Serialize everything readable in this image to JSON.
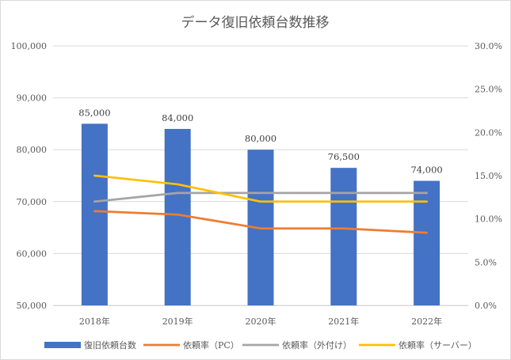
{
  "chart_data": {
    "type": "bar",
    "title": "データ復旧依頼台数推移",
    "categories": [
      "2018年",
      "2019年",
      "2020年",
      "2021年",
      "2022年"
    ],
    "series": [
      {
        "name": "復旧依頼台数",
        "kind": "bar",
        "axis": "left",
        "color": "#4472C4",
        "values": [
          85000,
          84000,
          80000,
          76500,
          74000
        ],
        "labels": [
          "85,000",
          "84,000",
          "80,000",
          "76,500",
          "74,000"
        ]
      },
      {
        "name": "依頼率（PC）",
        "kind": "line",
        "axis": "right",
        "color": "#ED7D31",
        "values": [
          0.109,
          0.105,
          0.089,
          0.089,
          0.084
        ]
      },
      {
        "name": "依頼率（外付け）",
        "kind": "line",
        "axis": "right",
        "color": "#A5A5A5",
        "values": [
          0.12,
          0.13,
          0.13,
          0.13,
          0.13
        ]
      },
      {
        "name": "依頼率（サーバー）",
        "kind": "line",
        "axis": "right",
        "color": "#FFC000",
        "values": [
          0.15,
          0.14,
          0.12,
          0.12,
          0.12
        ]
      }
    ],
    "y_left": {
      "min": 50000,
      "max": 100000,
      "ticks": [
        50000,
        60000,
        70000,
        80000,
        90000,
        100000
      ],
      "tick_labels": [
        "50,000",
        "60,000",
        "70,000",
        "80,000",
        "90,000",
        "100,000"
      ]
    },
    "y_right": {
      "min": 0,
      "max": 0.3,
      "ticks": [
        0,
        0.05,
        0.1,
        0.15,
        0.2,
        0.25,
        0.3
      ],
      "tick_labels": [
        "0.0%",
        "5.0%",
        "10.0%",
        "15.0%",
        "20.0%",
        "25.0%",
        "30.0%"
      ]
    },
    "grid": true,
    "legend_position": "bottom"
  }
}
